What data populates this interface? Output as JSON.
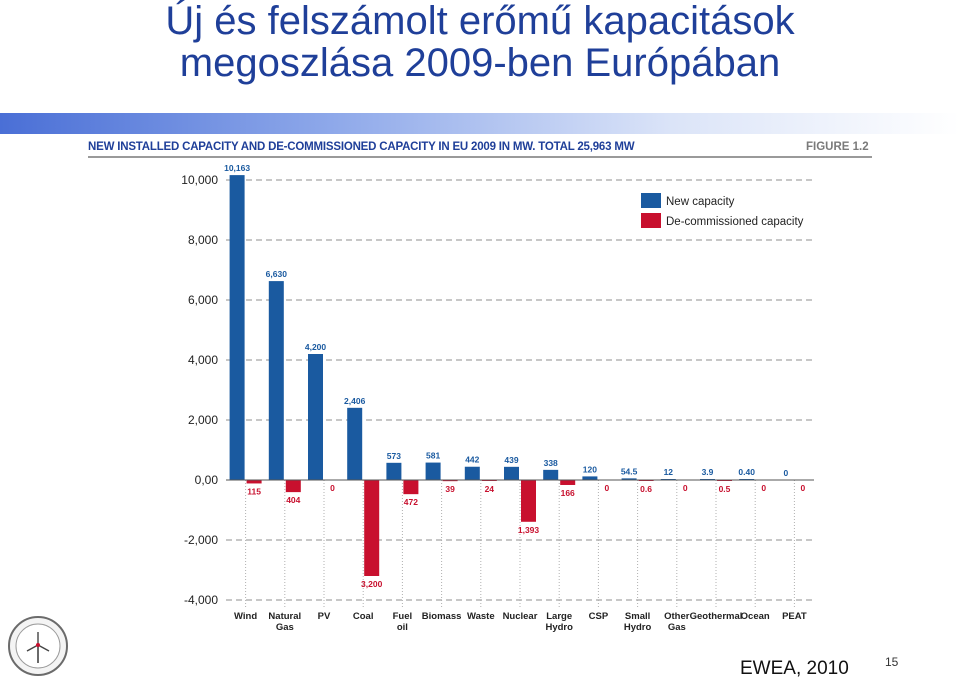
{
  "slide": {
    "title_line1": "Új és felszámolt erőmű kapacitások",
    "title_line2": "megoszlása 2009-ben Európában",
    "source": "EWEA, 2010",
    "page_number": "15",
    "logo_icon": "power-plant-seal-icon"
  },
  "chart_data": {
    "type": "bar",
    "title": "NEW INSTALLED CAPACITY AND DE-COMMISSIONED CAPACITY IN EU 2009 IN MW. TOTAL 25,963 MW",
    "figure_label": "FIGURE 1.2",
    "categories": [
      [
        "Wind"
      ],
      [
        "Natural",
        "Gas"
      ],
      [
        "PV"
      ],
      [
        "Coal"
      ],
      [
        "Fuel",
        "oil"
      ],
      [
        "Biomass"
      ],
      [
        "Waste"
      ],
      [
        "Nuclear"
      ],
      [
        "Large",
        "Hydro"
      ],
      [
        "CSP"
      ],
      [
        "Small",
        "Hydro"
      ],
      [
        "Other",
        "Gas"
      ],
      [
        "Geothermal"
      ],
      [
        "Ocean"
      ],
      [
        "PEAT"
      ]
    ],
    "series": [
      {
        "name": "New capacity",
        "color": "#1a5aa0",
        "values": [
          10163,
          6630,
          4200,
          2406,
          573,
          581,
          442,
          439,
          338,
          120,
          54.5,
          12,
          3.9,
          0.4,
          0
        ],
        "labels": [
          "10,163",
          "6,630",
          "4,200",
          "2,406",
          "573",
          "581",
          "442",
          "439",
          "338",
          "120",
          "54.5",
          "12",
          "3.9",
          "0.40",
          "0"
        ]
      },
      {
        "name": "De-commissioned capacity",
        "color": "#c8102e",
        "values": [
          -115,
          -404,
          0,
          -3200,
          -472,
          -39,
          -24,
          -1393,
          -166,
          0,
          -0.6,
          0,
          -0.5,
          0,
          0
        ],
        "labels": [
          "115",
          "404",
          "0",
          "3,200",
          "472",
          "39",
          "24",
          "1,393",
          "166",
          "0",
          "0.6",
          "0",
          "0.5",
          "0",
          "0"
        ]
      }
    ],
    "ylim": [
      -4000,
      10000
    ],
    "yticks": [
      {
        "value": 10000,
        "label": "10,000"
      },
      {
        "value": 8000,
        "label": "8,000"
      },
      {
        "value": 6000,
        "label": "6,000"
      },
      {
        "value": 4000,
        "label": "4,000"
      },
      {
        "value": 2000,
        "label": "2,000"
      },
      {
        "value": 0,
        "label": "0,00"
      },
      {
        "value": -2000,
        "label": "-2,000"
      },
      {
        "value": -4000,
        "label": "-4,000"
      }
    ],
    "grid": true,
    "legend_position": "top-right"
  }
}
